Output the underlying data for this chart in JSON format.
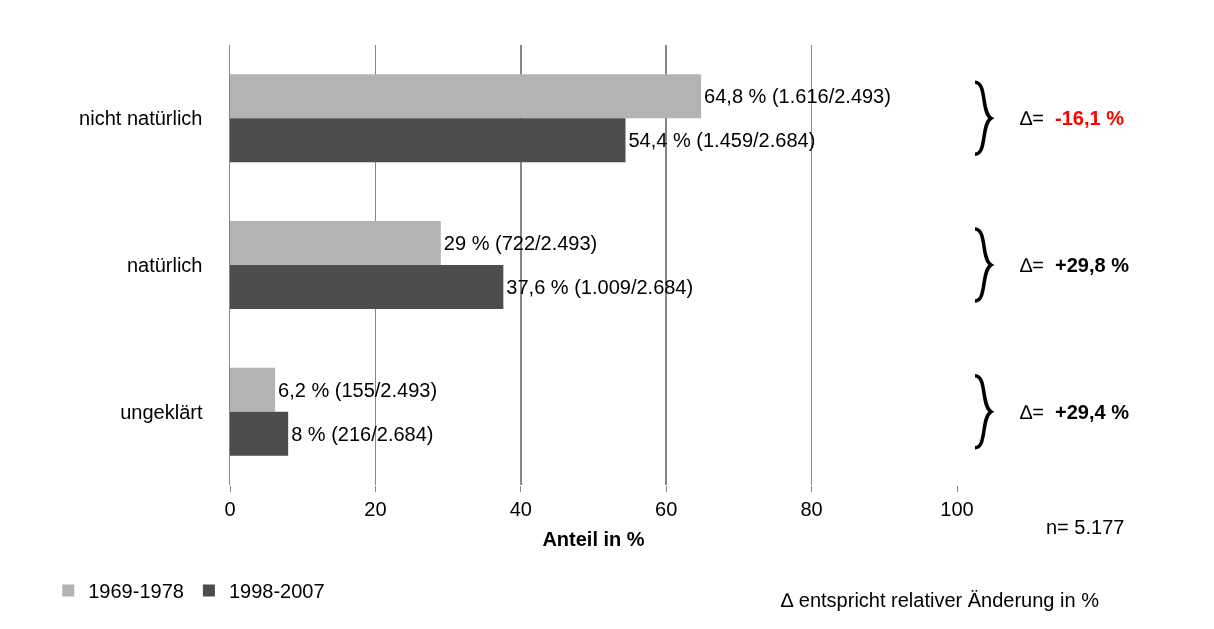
{
  "chart_data": {
    "type": "bar",
    "orientation": "horizontal",
    "xlabel": "Anteil in %",
    "categories": [
      "nicht natürlich",
      "natürlich",
      "ungeklärt"
    ],
    "series": [
      {
        "name": "1969-1978",
        "color": "#b3b3b3",
        "values": [
          64.8,
          29,
          6.2
        ],
        "value_labels": [
          "64,8 % (1.616/2.493)",
          "29 % (722/2.493)",
          "6,2 % (155/2.493)"
        ]
      },
      {
        "name": "1998-2007",
        "color": "#4d4d4d",
        "values": [
          54.4,
          37.6,
          8
        ],
        "value_labels": [
          "54,4 % (1.459/2.684)",
          "37,6 % (1.009/2.684)",
          "8 % (216/2.684)"
        ]
      }
    ],
    "xlim": [
      0,
      100
    ],
    "xticks": [
      0,
      20,
      40,
      60,
      80,
      100
    ],
    "grid": "x",
    "legend": "bottom left",
    "annotations": [
      "∆= -16,1 %",
      "∆= +29,8 %",
      "∆= +29,4 %",
      "n= 5.177",
      "∆ entspricht relativer Änderung in %"
    ]
  }
}
